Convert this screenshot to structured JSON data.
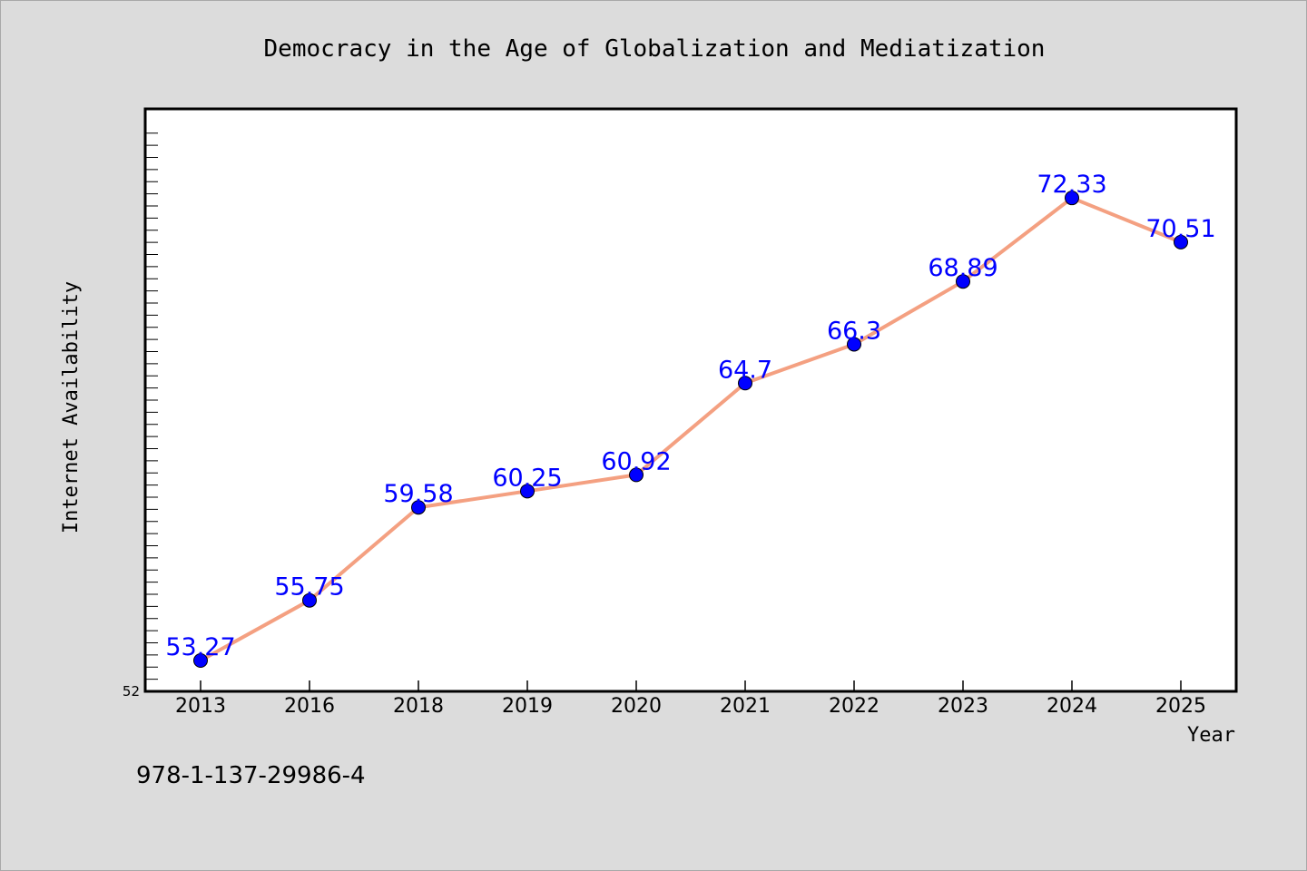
{
  "chart_data": {
    "type": "line",
    "title": "Democracy in the Age of Globalization and Mediatization",
    "xlabel": "Year",
    "ylabel": "Internet Availability",
    "categories": [
      "2013",
      "2016",
      "2018",
      "2019",
      "2020",
      "2021",
      "2022",
      "2023",
      "2024",
      "2025"
    ],
    "series": [
      {
        "values": [
          53.27,
          55.75,
          59.58,
          60.25,
          60.92,
          64.7,
          66.3,
          68.89,
          72.33,
          70.51
        ],
        "labels": [
          "53.27",
          "55.75",
          "59.58",
          "60.25",
          "60.92",
          "64.7",
          "66.3",
          "68.89",
          "72.33",
          "70.51"
        ]
      }
    ],
    "ylim": [
      52,
      76
    ],
    "y_tick_labels": [
      "52"
    ],
    "grid": false,
    "legend": "none",
    "line_color": "#f4a081",
    "marker_color": "#0000ff",
    "label_color": "#0000ff",
    "background_color": "#dcdcdc",
    "plot_background": "#ffffff"
  },
  "footer": {
    "isbn": "978-1-137-29986-4"
  }
}
